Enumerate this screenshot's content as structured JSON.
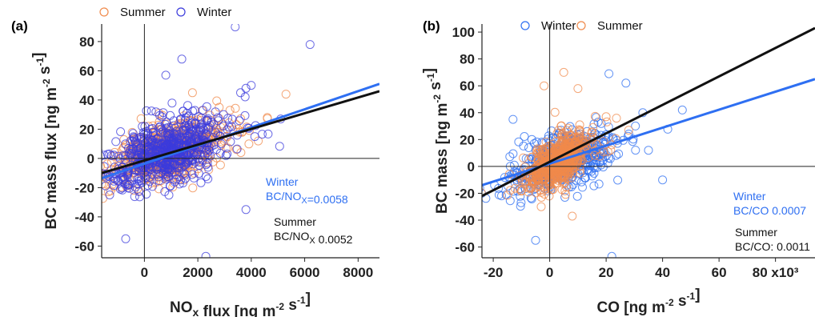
{
  "colors": {
    "winter": "#3b3bdc",
    "summer": "#f08a4b",
    "winter_fit": "#2e6ff2",
    "summer_fit": "#111111",
    "axis": "#222222"
  },
  "chart_data": [
    {
      "type": "scatter",
      "panel_label": "(a)",
      "xlabel": "NOx flux [ng m-2 s-1]",
      "ylabel": "BC mass flux [ng m-2 s-1]",
      "xlim": [
        -1600,
        8800
      ],
      "ylim": [
        -68,
        92
      ],
      "xticks": [
        0,
        2000,
        4000,
        6000,
        8000
      ],
      "xtick_labels": [
        "0",
        "2000",
        "4000",
        "6000",
        "8000"
      ],
      "yticks": [
        -60,
        -40,
        -20,
        0,
        20,
        40,
        60,
        80
      ],
      "ytick_labels": [
        "-60",
        "-40",
        "-20",
        "0",
        "20",
        "40",
        "60",
        "80"
      ],
      "legend": {
        "position": "top",
        "entries": [
          "Summer",
          "Winter"
        ]
      },
      "series": [
        {
          "name": "Summer",
          "color_key": "summer",
          "x_center": 900,
          "x_sd": 900,
          "y_slope": 0.0052,
          "y_sd": 9,
          "n": 700,
          "seed": 7,
          "extra": [
            [
              2800,
              35
            ],
            [
              3200,
              33
            ],
            [
              5300,
              44
            ],
            [
              4600,
              28
            ],
            [
              1800,
              45
            ],
            [
              2500,
              26
            ],
            [
              3500,
              20
            ],
            [
              -400,
              -10
            ]
          ]
        },
        {
          "name": "Winter",
          "color_key": "winter",
          "x_center": 900,
          "x_sd": 1000,
          "y_slope": 0.0058,
          "y_sd": 11,
          "n": 650,
          "seed": 11,
          "extra": [
            [
              3400,
              90
            ],
            [
              6200,
              78
            ],
            [
              1400,
              68
            ],
            [
              800,
              57
            ],
            [
              -700,
              -55
            ],
            [
              2300,
              -67
            ],
            [
              3800,
              -35
            ],
            [
              -1300,
              -25
            ],
            [
              4000,
              50
            ],
            [
              3800,
              48
            ],
            [
              3600,
              45
            ],
            [
              -1000,
              -15
            ]
          ]
        }
      ],
      "fits": [
        {
          "name": "Winter",
          "color_key": "winter_fit",
          "x": [
            -1600,
            8800
          ],
          "y": [
            -13.5,
            51
          ]
        },
        {
          "name": "Summer",
          "color_key": "summer_fit",
          "x": [
            -1600,
            8800
          ],
          "y": [
            -10,
            46
          ]
        }
      ],
      "annotations": [
        {
          "id": "winter",
          "title": "Winter",
          "text": "BC/NOx=0.0058",
          "color_key": "winter_fit"
        },
        {
          "id": "summer",
          "title": "Summer",
          "text": "BC/NOx 0.0052",
          "color_key": "summer_fit"
        }
      ]
    },
    {
      "type": "scatter",
      "panel_label": "(b)",
      "xlabel": "CO [ng m-2 s-1]",
      "ylabel": "BC mass [ng m-2 s-1]",
      "xlim": [
        -24,
        94
      ],
      "ylim": [
        -68,
        106
      ],
      "xticks": [
        -20,
        0,
        20,
        40,
        60,
        80
      ],
      "xtick_labels": [
        "-20",
        "0",
        "20",
        "40",
        "60",
        "80 x10³"
      ],
      "yticks": [
        -60,
        -40,
        -20,
        0,
        20,
        40,
        60,
        80,
        100
      ],
      "ytick_labels": [
        "-60",
        "-40",
        "-20",
        "0",
        "20",
        "40",
        "60",
        "80",
        "100"
      ],
      "legend": {
        "position": "top",
        "entries": [
          "Winter",
          "Summer"
        ]
      },
      "series": [
        {
          "name": "Winter",
          "color_key": "winter_fit",
          "x_center": 5,
          "x_sd": 8,
          "y_slope": 0.7,
          "y_sd": 10,
          "n": 500,
          "seed": 23,
          "extra": [
            [
              21,
              69
            ],
            [
              22,
              -67
            ],
            [
              -5,
              -55
            ],
            [
              27,
              62
            ],
            [
              47,
              42
            ],
            [
              33,
              40
            ],
            [
              -13,
              35
            ],
            [
              35,
              12
            ],
            [
              40,
              -10
            ]
          ]
        },
        {
          "name": "Summer",
          "color_key": "summer",
          "x_center": 3,
          "x_sd": 5,
          "y_slope": 1.1,
          "y_sd": 9,
          "n": 600,
          "seed": 29,
          "extra": [
            [
              -2,
              60
            ],
            [
              5,
              70
            ],
            [
              20,
              37
            ],
            [
              28,
              27
            ],
            [
              10,
              58
            ],
            [
              -3,
              -30
            ],
            [
              8,
              -37
            ],
            [
              15,
              25
            ]
          ]
        }
      ],
      "fits": [
        {
          "name": "Winter",
          "color_key": "winter_fit",
          "x": [
            -24,
            94
          ],
          "y": [
            -14,
            65
          ]
        },
        {
          "name": "Summer",
          "color_key": "summer_fit",
          "x": [
            -24,
            94
          ],
          "y": [
            -22,
            103
          ]
        }
      ],
      "annotations": [
        {
          "id": "winter",
          "title": "Winter",
          "text": "BC/CO 0.0007",
          "color_key": "winter_fit"
        },
        {
          "id": "summer",
          "title": "Summer",
          "text": "BC/CO: 0.0011",
          "color_key": "summer_fit"
        }
      ]
    }
  ]
}
